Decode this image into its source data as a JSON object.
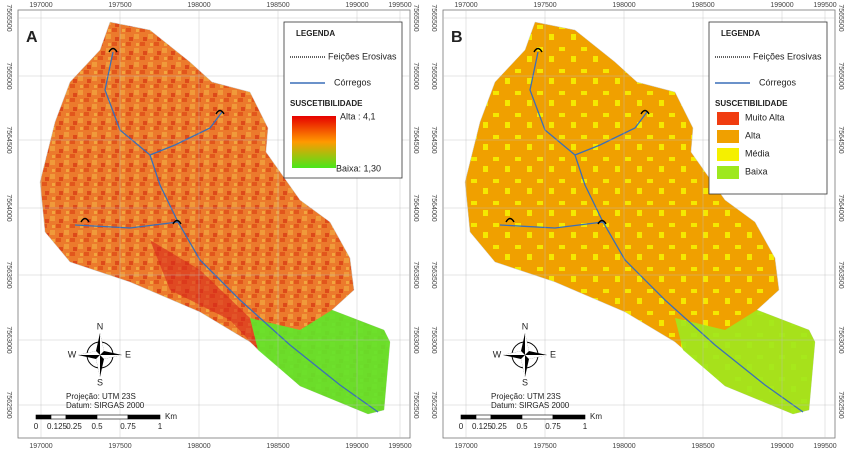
{
  "panels": [
    {
      "label": "A",
      "x_ticks": [
        "197000",
        "197500",
        "198000",
        "198500",
        "199000",
        "199500"
      ],
      "y_ticks": [
        "7565500",
        "7565000",
        "7564500",
        "7564000",
        "7563500",
        "7563000",
        "7562500"
      ],
      "legend": {
        "title": "LEGENDA",
        "items": [
          "Feições Erosivas",
          "Córregos"
        ],
        "subtitle": "SUSCETIBILIDADE",
        "high": "Alta : 4,1",
        "low": "Baixa: 1,30"
      },
      "projection": "Projeção: UTM 23S",
      "datum": "Datum: SIRGAS 2000",
      "scale": {
        "unit": "Km",
        "labels": [
          "0",
          "0.125",
          "0.25",
          "0.5",
          "0.75",
          "1"
        ]
      },
      "compass": {
        "n": "N",
        "s": "S",
        "w": "W",
        "e": "E"
      }
    },
    {
      "label": "B",
      "x_ticks": [
        "197000",
        "197500",
        "198000",
        "198500",
        "199000",
        "199500"
      ],
      "y_ticks": [
        "7565500",
        "7565000",
        "7564500",
        "7564000",
        "7563500",
        "7563000",
        "7562500"
      ],
      "legend": {
        "title": "LEGENDA",
        "items": [
          "Feições Erosivas",
          "Córregos"
        ],
        "subtitle": "SUSCETIBILIDADE",
        "classes": [
          {
            "name": "Muito Alta",
            "color": "#f03c10"
          },
          {
            "name": "Alta",
            "color": "#f0a000"
          },
          {
            "name": "Média",
            "color": "#f5f000"
          },
          {
            "name": "Baixa",
            "color": "#9ee81e"
          }
        ]
      },
      "projection": "Projeção: UTM 23S",
      "datum": "Datum: SIRGAS 2000",
      "scale": {
        "unit": "Km",
        "labels": [
          "0",
          "0.125",
          "0.25",
          "0.5",
          "0.75",
          "1"
        ]
      },
      "compass": {
        "n": "N",
        "s": "S",
        "w": "W",
        "e": "E"
      }
    }
  ]
}
